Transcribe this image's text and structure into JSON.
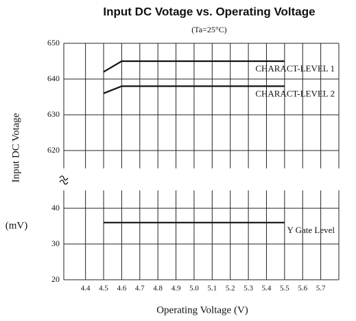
{
  "chart_data": {
    "type": "line",
    "title": "Input DC Votage vs. Operating Voltage",
    "subtitle": "(Ta=25°C)",
    "y_label": "Input DC Votage",
    "y_unit": "(mV)",
    "x_label": "Operating Voltage (V)",
    "xlim": [
      4.28,
      5.8
    ],
    "xticks": [
      4.4,
      4.5,
      4.6,
      4.7,
      4.8,
      4.9,
      {
        "value": 5.0,
        "label": "5.0"
      },
      5.1,
      5.2,
      5.3,
      5.4,
      5.5,
      5.6,
      5.7
    ],
    "ylim": [
      20,
      650
    ],
    "axis_break": [
      45,
      615
    ],
    "yticks": [
      20,
      30,
      40,
      620,
      630,
      640,
      650
    ],
    "grid": true,
    "series": [
      {
        "name": "CHARACT-LEVEL 1",
        "color": "#111111",
        "x": [
          4.5,
          4.6,
          5.5
        ],
        "values": [
          642,
          645,
          645
        ]
      },
      {
        "name": "CHARACT-LEVEL 2",
        "color": "#111111",
        "x": [
          4.5,
          4.6,
          5.5
        ],
        "values": [
          636,
          638,
          638
        ]
      },
      {
        "name": "Y Gate Level",
        "color": "#111111",
        "x": [
          4.5,
          5.5
        ],
        "values": [
          36,
          36
        ]
      }
    ]
  }
}
